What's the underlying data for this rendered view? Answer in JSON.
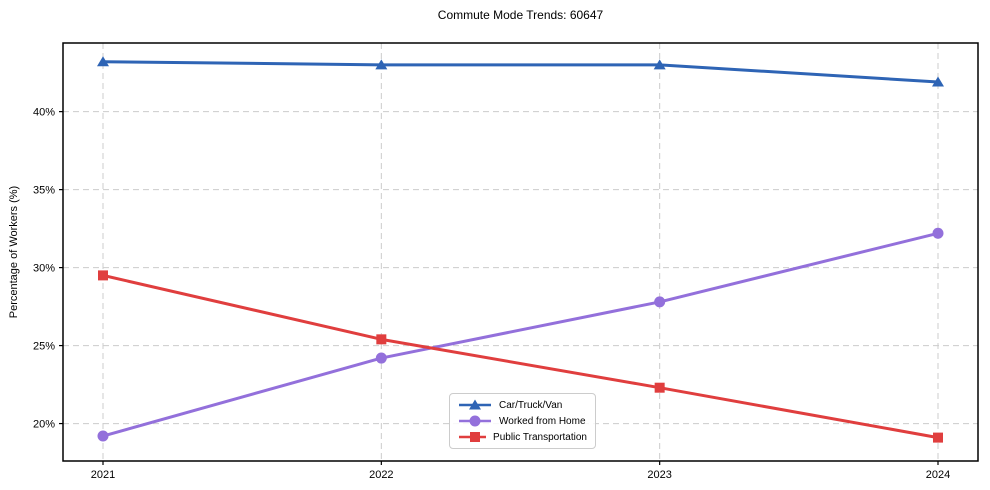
{
  "chart_data": {
    "type": "line",
    "title": "Commute Mode Trends: 60647",
    "ylabel": "Percentage of Workers (%)",
    "x": [
      2021,
      2022,
      2023,
      2024
    ],
    "x_tick_labels": [
      "2021",
      "2022",
      "2023",
      "2024"
    ],
    "y_ticks": [
      20,
      25,
      30,
      35,
      40
    ],
    "y_tick_labels": [
      "20%",
      "25%",
      "30%",
      "35%",
      "40%"
    ],
    "ylim": [
      17.6,
      44.4
    ],
    "grid": true,
    "grid_style": "dashed",
    "grid_color": "#cccccc",
    "spine_color": "#000000",
    "legend_position": "center-bottom",
    "series": [
      {
        "name": "Car/Truck/Van",
        "marker": "triangle",
        "color": "#2e64b5",
        "values": [
          43.2,
          43.0,
          43.0,
          41.9
        ]
      },
      {
        "name": "Worked from Home",
        "marker": "circle",
        "color": "#9370db",
        "values": [
          19.2,
          24.2,
          27.8,
          32.2
        ]
      },
      {
        "name": "Public Transportation",
        "marker": "square",
        "color": "#e03e3e",
        "values": [
          29.5,
          25.4,
          22.3,
          19.1
        ]
      }
    ]
  }
}
